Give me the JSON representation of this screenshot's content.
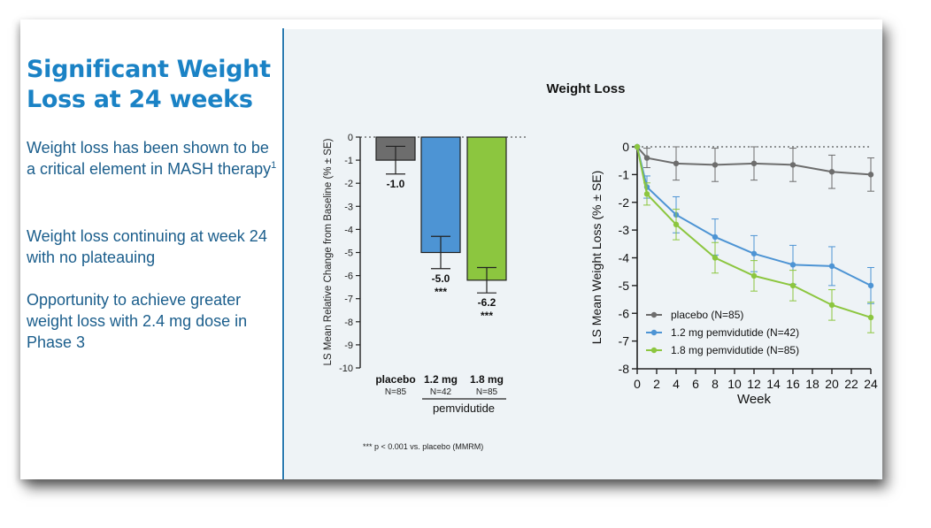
{
  "left": {
    "headline_line1": "Significant Weight",
    "headline_line2": "Loss at 24 weeks",
    "bullet1_text": "Weight loss has been shown to be a critical element in MASH therapy",
    "bullet1_sup": "1",
    "bullet2_text": "Weight loss continuing at week 24 with no plateauing",
    "bullet3_text": "Opportunity to achieve greater weight loss with 2.4 mg dose in Phase 3"
  },
  "figure_title": "Weight Loss",
  "colors": {
    "placebo": "#6d6d6d",
    "dose_1_2": "#4d94d4",
    "dose_1_8": "#8cc63f",
    "headline": "#1a82c5",
    "body_text": "#1b5e8c"
  },
  "chart_data": [
    {
      "type": "bar",
      "ylabel": "LS Mean Relative Change from Baseline (% ± SE)",
      "ylim": [
        -10,
        0
      ],
      "yticks": [
        "0",
        "-1",
        "-2",
        "-3",
        "-4",
        "-5",
        "-6",
        "-7",
        "-8",
        "-9",
        "-10"
      ],
      "categories": [
        "placebo",
        "1.2 mg",
        "1.8 mg"
      ],
      "category_sublabels": [
        "N=85",
        "N=42",
        "N=85"
      ],
      "group_label": "pemvidutide",
      "values": [
        -1.0,
        -5.0,
        -6.2
      ],
      "value_labels": [
        "-1.0",
        "-5.0",
        "-6.2"
      ],
      "se": [
        0.6,
        0.7,
        0.55
      ],
      "significance": [
        "",
        "***",
        "***"
      ],
      "footnote": "*** p < 0.001 vs. placebo (MMRM)"
    },
    {
      "type": "line",
      "xlabel": "Week",
      "ylabel": "LS Mean Weight Loss (% ± SE)",
      "xlim": [
        0,
        24
      ],
      "ylim": [
        -8,
        0
      ],
      "xticks": [
        "0",
        "2",
        "4",
        "6",
        "8",
        "10",
        "12",
        "14",
        "16",
        "18",
        "20",
        "22",
        "24"
      ],
      "yticks": [
        "0",
        "-1",
        "-2",
        "-3",
        "-4",
        "-5",
        "-6",
        "-7",
        "-8"
      ],
      "x": [
        0,
        1,
        4,
        8,
        12,
        16,
        20,
        24
      ],
      "legend_position": "bottom-left",
      "series": [
        {
          "name": "placebo (N=85)",
          "values": [
            0,
            -0.4,
            -0.6,
            -0.65,
            -0.6,
            -0.65,
            -0.9,
            -1.0
          ],
          "se": [
            0,
            0.35,
            0.6,
            0.6,
            0.6,
            0.6,
            0.6,
            0.6
          ]
        },
        {
          "name": "1.2 mg pemvidutide (N=42)",
          "values": [
            0,
            -1.45,
            -2.45,
            -3.25,
            -3.85,
            -4.25,
            -4.3,
            -5.0
          ],
          "se": [
            0,
            0.4,
            0.65,
            0.65,
            0.65,
            0.7,
            0.7,
            0.65
          ]
        },
        {
          "name": "1.8 mg pemvidutide (N=85)",
          "values": [
            0,
            -1.7,
            -2.8,
            -4.0,
            -4.65,
            -5.0,
            -5.7,
            -6.15
          ],
          "se": [
            0,
            0.4,
            0.55,
            0.55,
            0.55,
            0.55,
            0.55,
            0.55
          ]
        }
      ]
    }
  ]
}
